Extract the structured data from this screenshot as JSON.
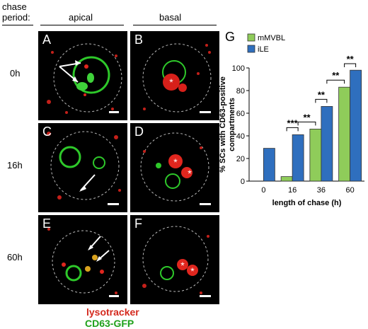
{
  "header": {
    "chase_period": "chase period:",
    "col_apical": "apical",
    "col_basal": "basal"
  },
  "rows": [
    {
      "label": "0h"
    },
    {
      "label": "16h"
    },
    {
      "label": "60h"
    }
  ],
  "panels": {
    "A": "A",
    "B": "B",
    "C": "C",
    "D": "D",
    "E": "E",
    "F": "F"
  },
  "panel_label_chart": "G",
  "stain_legend": {
    "lysotracker": "lysotracker",
    "cd63": "CD63-GFP"
  },
  "colors": {
    "mMVBL": "#8fcc5a",
    "iLE": "#2f6fbe",
    "lysotracker": "#d42a1e",
    "cd63": "#1fa11a"
  },
  "chart_data": {
    "type": "bar",
    "categories": [
      "0",
      "16",
      "36",
      "60"
    ],
    "series": [
      {
        "name": "mMVBL",
        "values": [
          0,
          4,
          46,
          83
        ]
      },
      {
        "name": "iLE",
        "values": [
          29,
          41,
          66,
          98
        ]
      }
    ],
    "ylabel": "% SCs with CD63-positive compartments",
    "xlabel": "length of chase (h)",
    "ylim": [
      0,
      100
    ],
    "yticks": [
      "0",
      "20",
      "40",
      "60",
      "80",
      "100"
    ],
    "legend": "top-left",
    "significance": [
      "***",
      "**",
      "**",
      "**",
      "**"
    ]
  }
}
